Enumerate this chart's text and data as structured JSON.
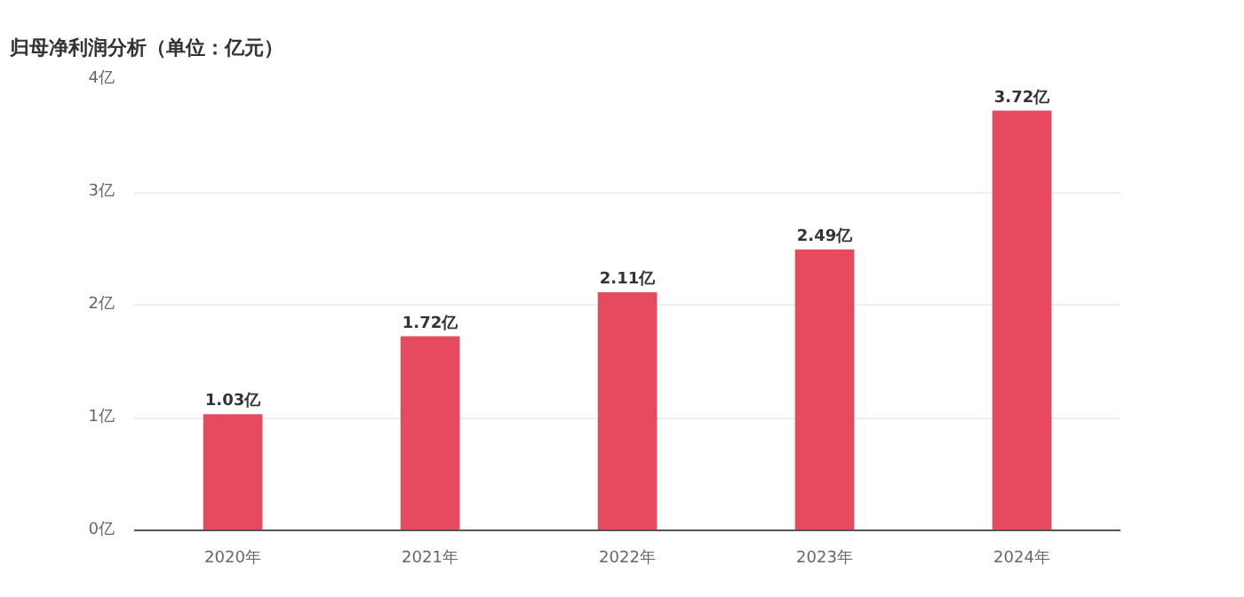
{
  "chart_data": {
    "type": "bar",
    "title": "归母净利润分析（单位：亿元）",
    "categories": [
      "2020年",
      "2021年",
      "2022年",
      "2023年",
      "2024年"
    ],
    "values": [
      1.03,
      1.72,
      2.11,
      2.49,
      3.72
    ],
    "value_labels": [
      "1.03亿",
      "1.72亿",
      "2.11亿",
      "2.49亿",
      "3.72亿"
    ],
    "color": "#e64a5e",
    "ylim": [
      0,
      4
    ],
    "yticks": [
      {
        "value": 0,
        "label": "0亿"
      },
      {
        "value": 1,
        "label": "1亿"
      },
      {
        "value": 2,
        "label": "2亿"
      },
      {
        "value": 3,
        "label": "3亿"
      },
      {
        "value": 4,
        "label": "4亿"
      }
    ],
    "grid": "y"
  }
}
